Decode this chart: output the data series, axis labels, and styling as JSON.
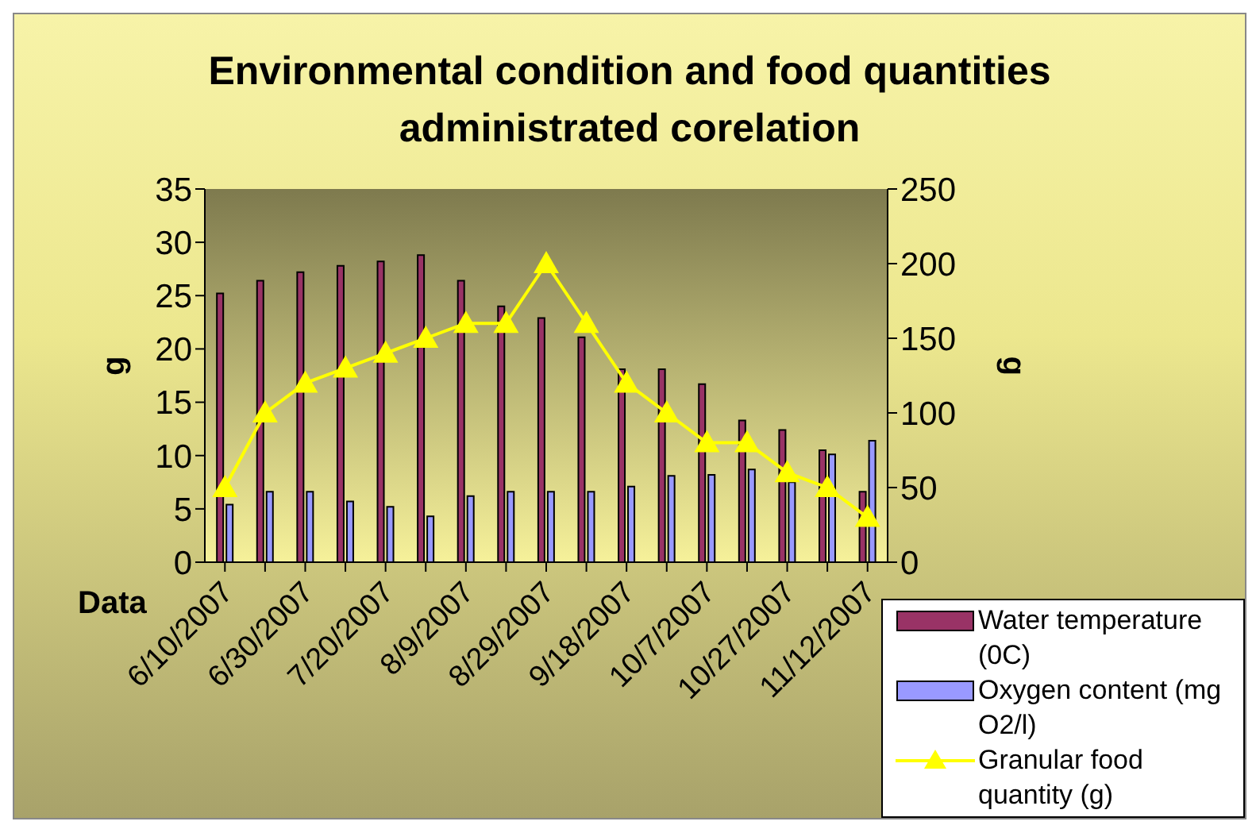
{
  "chart_data": {
    "type": "bar",
    "title": "Environmental condition and food quantities administrated corelation",
    "xlabel": "Data",
    "ylabel": "g",
    "y2label": "g",
    "categories": [
      "6/10/2007",
      null,
      "6/30/2007",
      null,
      "7/20/2007",
      null,
      "8/9/2007",
      null,
      "8/29/2007",
      null,
      "9/18/2007",
      null,
      "10/7/2007",
      null,
      "10/27/2007",
      null,
      "11/12/2007"
    ],
    "series": [
      {
        "name": "Water temperature (0C)",
        "color": "#993366",
        "values": [
          25.2,
          26.4,
          27.2,
          27.8,
          28.2,
          28.8,
          26.4,
          24.0,
          22.9,
          21.1,
          18.1,
          18.1,
          16.7,
          13.3,
          12.4,
          10.5,
          6.6
        ]
      },
      {
        "name": "Oxygen content (mg O2/l)",
        "color": "#9999ff",
        "values": [
          5.4,
          6.6,
          6.6,
          5.7,
          5.2,
          4.3,
          6.2,
          6.6,
          6.6,
          6.6,
          7.1,
          8.1,
          8.2,
          8.7,
          7.5,
          10.1,
          11.4
        ]
      },
      {
        "name": "Granular food quantity (g)",
        "type": "line",
        "axis": "y2",
        "color": "#ffff00",
        "values": [
          50,
          100,
          120,
          130,
          140,
          150,
          160,
          160,
          200,
          160,
          120,
          100,
          80,
          80,
          60,
          50,
          30
        ]
      }
    ],
    "ylim": [
      0,
      35
    ],
    "yticks": [
      0,
      5,
      10,
      15,
      20,
      25,
      30,
      35
    ],
    "y2lim": [
      0,
      250
    ],
    "y2ticks": [
      0,
      50,
      100,
      150,
      200,
      250
    ],
    "grid": false,
    "legend": "bottom right",
    "marker": "triangle",
    "line_style": "solid"
  }
}
